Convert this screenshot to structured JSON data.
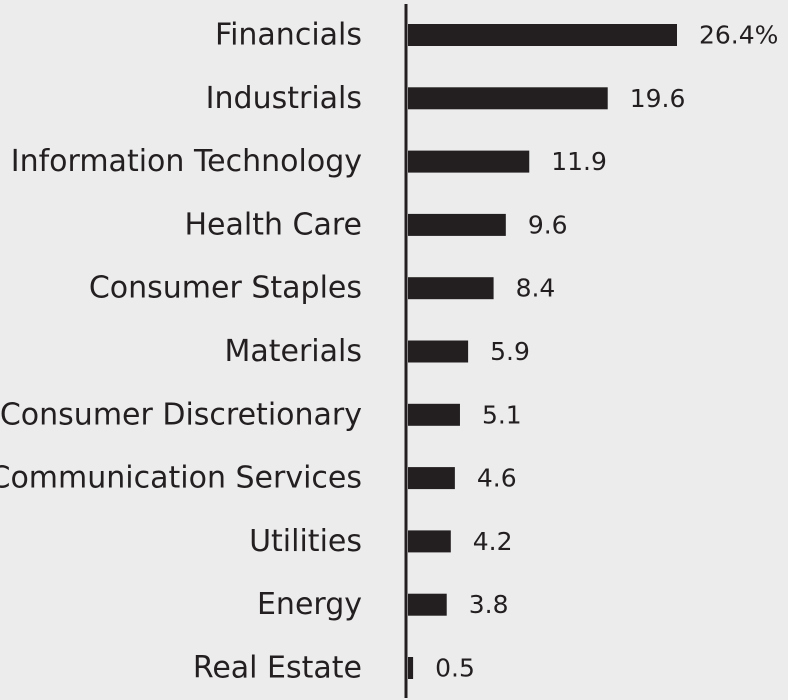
{
  "chart_data": {
    "type": "bar",
    "orientation": "horizontal",
    "categories": [
      "Financials",
      "Industrials",
      "Information Technology",
      "Health Care",
      "Consumer Staples",
      "Materials",
      "Consumer Discretionary",
      "Communication Services",
      "Utilities",
      "Energy",
      "Real Estate"
    ],
    "values": [
      26.4,
      19.6,
      11.9,
      9.6,
      8.4,
      5.9,
      5.1,
      4.6,
      4.2,
      3.8,
      0.5
    ],
    "value_labels": [
      "26.4%",
      "19.6",
      "11.9",
      "9.6",
      "8.4",
      "5.9",
      "5.1",
      "4.6",
      "4.2",
      "3.8",
      "0.5"
    ],
    "title": "",
    "xlabel": "",
    "ylabel": "",
    "xlim": [
      0,
      26.4
    ],
    "grid": false,
    "legend": "none",
    "bar_color": "#231f20",
    "text_color": "#231f20",
    "background_color": "#ececec"
  }
}
